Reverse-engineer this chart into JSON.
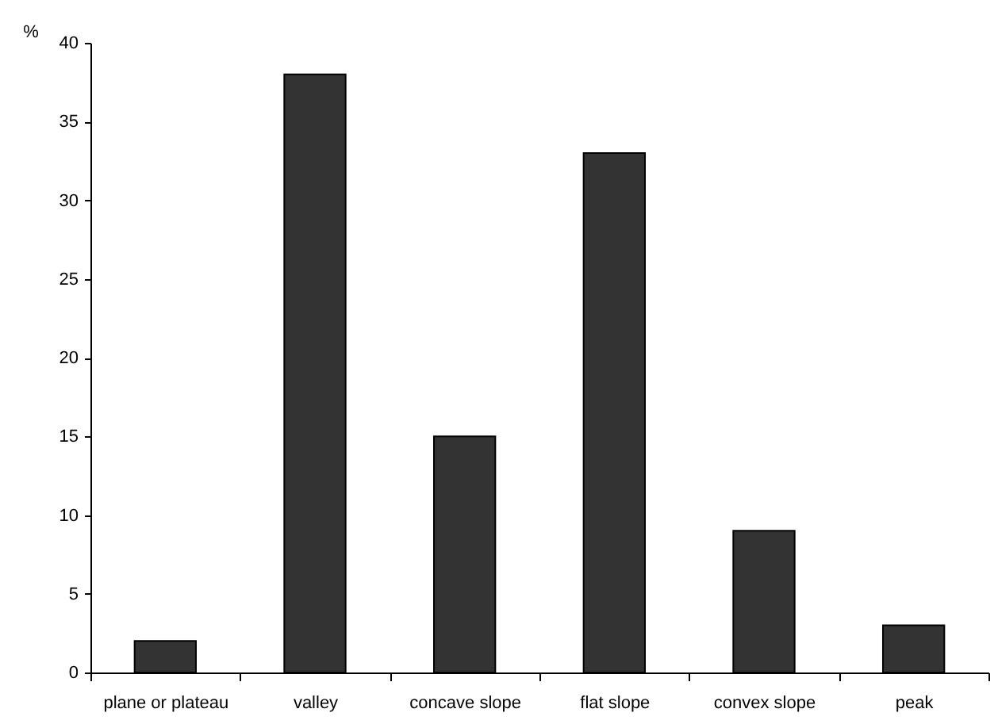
{
  "chart_data": {
    "type": "bar",
    "ylabel": "%",
    "categories": [
      "plane or plateau",
      "valley",
      "concave slope",
      "flat slope",
      "convex slope",
      "peak"
    ],
    "values": [
      2,
      38,
      15,
      33,
      9,
      3
    ],
    "color": "#333333",
    "ylim": [
      0,
      40
    ],
    "yticks": [
      0,
      5,
      10,
      15,
      20,
      25,
      30,
      35,
      40
    ],
    "grid": false
  }
}
